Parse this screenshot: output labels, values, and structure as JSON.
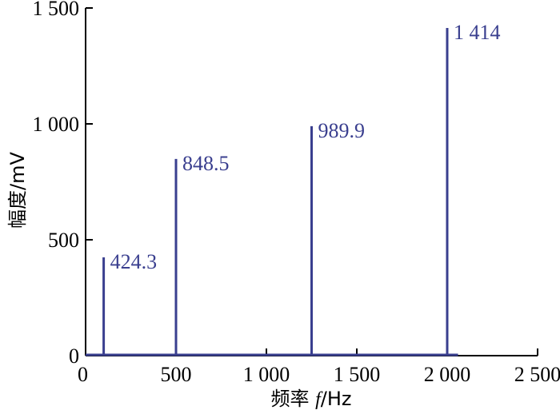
{
  "chart_data": {
    "type": "bar",
    "x": [
      100,
      500,
      1250,
      2000
    ],
    "values": [
      424.3,
      848.5,
      989.9,
      1414
    ],
    "data_labels": [
      "424.3",
      "848.5",
      "989.9",
      "1 414"
    ],
    "xlabel": {
      "prefix": "频率 ",
      "var": "f",
      "unit": "/Hz"
    },
    "ylabel": "幅度/mV",
    "xlim": [
      0,
      2500
    ],
    "ylim": [
      0,
      1500
    ],
    "xticks": [
      0,
      500,
      1000,
      1500,
      2000,
      2500
    ],
    "xtick_labels": [
      "0",
      "500",
      "1 000",
      "1 500",
      "2 000",
      "2 500"
    ],
    "yticks": [
      0,
      500,
      1000,
      1500
    ],
    "ytick_labels": [
      "0",
      "500",
      "1 000",
      "1 500"
    ],
    "baseline_end": 2060,
    "grid": false,
    "color": "#3a3f8f"
  }
}
